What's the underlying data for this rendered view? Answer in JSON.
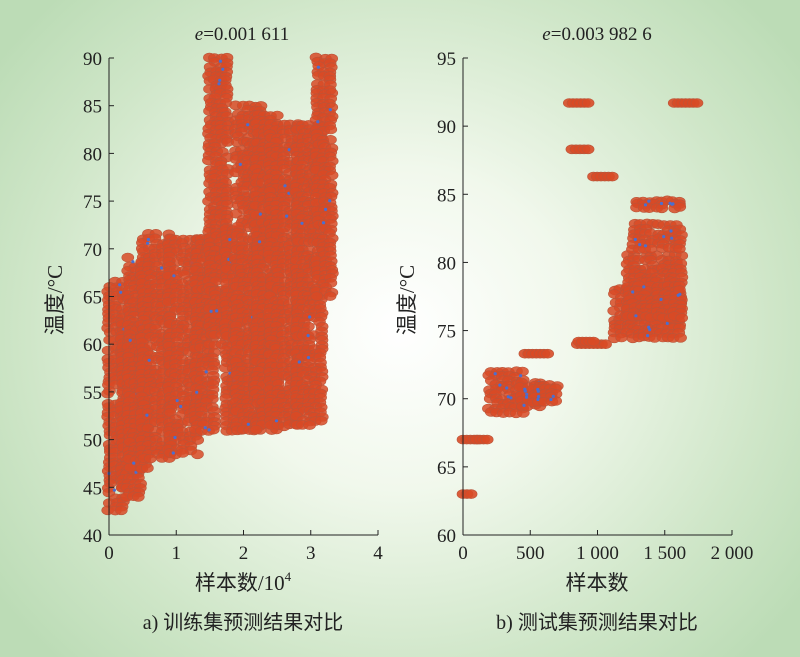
{
  "chart_data": [
    {
      "type": "scatter",
      "title_var": "e",
      "title_value": "=0.001 611",
      "xlabel": "样本数/10",
      "xlabel_sup": "4",
      "ylabel": "温度/°C",
      "caption": "a) 训练集预测结果对比",
      "xlim": [
        0,
        4
      ],
      "ylim": [
        40,
        90
      ],
      "xticks": [
        0,
        1,
        2,
        3,
        4
      ],
      "xtick_labels": [
        "0",
        "1",
        "2",
        "3",
        "4"
      ],
      "yticks": [
        40,
        45,
        50,
        55,
        60,
        65,
        70,
        75,
        80,
        85,
        90
      ],
      "ytick_labels": [
        "40",
        "45",
        "50",
        "55",
        "60",
        "65",
        "70",
        "75",
        "80",
        "85",
        "90"
      ],
      "marker_color": "#d84a26",
      "accent_color": "#4a6fd0",
      "clusters": [
        {
          "x": [
            0.0,
            0.2
          ],
          "y": [
            42.5,
            66.5
          ]
        },
        {
          "x": [
            0.2,
            0.45
          ],
          "y": [
            44,
            62
          ]
        },
        {
          "x": [
            0.3,
            0.55
          ],
          "y": [
            47,
            69
          ]
        },
        {
          "x": [
            0.5,
            0.9
          ],
          "y": [
            48,
            71.5
          ]
        },
        {
          "x": [
            0.9,
            1.3
          ],
          "y": [
            48.5,
            71
          ]
        },
        {
          "x": [
            1.3,
            1.55
          ],
          "y": [
            51,
            71
          ]
        },
        {
          "x": [
            1.5,
            1.75
          ],
          "y": [
            60,
            90
          ]
        },
        {
          "x": [
            1.75,
            1.95
          ],
          "y": [
            51,
            72
          ]
        },
        {
          "x": [
            1.9,
            2.25
          ],
          "y": [
            51,
            85
          ]
        },
        {
          "x": [
            2.2,
            2.5
          ],
          "y": [
            51,
            84
          ]
        },
        {
          "x": [
            2.4,
            2.8
          ],
          "y": [
            51.5,
            83
          ]
        },
        {
          "x": [
            2.8,
            3.15
          ],
          "y": [
            51.5,
            83
          ]
        },
        {
          "x": [
            3.1,
            3.3
          ],
          "y": [
            65,
            90
          ]
        }
      ]
    },
    {
      "type": "scatter",
      "title_var": "e",
      "title_value": "=0.003 982 6",
      "xlabel": "样本数",
      "ylabel": "温度/°C",
      "caption": "b) 测试集预测结果对比",
      "xlim": [
        0,
        2000
      ],
      "ylim": [
        60,
        95
      ],
      "xticks": [
        0,
        500,
        1000,
        1500,
        2000
      ],
      "xtick_labels": [
        "0",
        "500",
        "1 000",
        "1 500",
        "2 000"
      ],
      "yticks": [
        60,
        65,
        70,
        75,
        80,
        85,
        90,
        95
      ],
      "ytick_labels": [
        "60",
        "65",
        "70",
        "75",
        "80",
        "85",
        "90",
        "95"
      ],
      "marker_color": "#d84a26",
      "accent_color": "#4a6fd0",
      "segments": [
        {
          "x": [
            0,
            60
          ],
          "y": 63
        },
        {
          "x": [
            0,
            110
          ],
          "y": 67
        },
        {
          "x": [
            100,
            180
          ],
          "y": 67
        },
        {
          "x": [
            460,
            630
          ],
          "y": 73.3
        },
        {
          "x": [
            850,
            1060
          ],
          "y": 74
        },
        {
          "x": [
            860,
            970
          ],
          "y": 74.2
        },
        {
          "x": [
            810,
            930
          ],
          "y": 88.3
        },
        {
          "x": [
            970,
            1110
          ],
          "y": 86.3
        },
        {
          "x": [
            790,
            930
          ],
          "y": 91.7
        },
        {
          "x": [
            1570,
            1740
          ],
          "y": 91.7
        }
      ],
      "clusters": [
        {
          "x": [
            200,
            440
          ],
          "y": [
            69,
            72
          ]
        },
        {
          "x": [
            430,
            580
          ],
          "y": [
            69.5,
            71.2
          ]
        },
        {
          "x": [
            530,
            690
          ],
          "y": [
            69.8,
            71
          ]
        },
        {
          "x": [
            1130,
            1610
          ],
          "y": [
            74.5,
            78
          ]
        },
        {
          "x": [
            1230,
            1620
          ],
          "y": [
            76,
            80.5
          ]
        },
        {
          "x": [
            1270,
            1620
          ],
          "y": [
            81,
            82.8
          ]
        },
        {
          "x": [
            1300,
            1610
          ],
          "y": [
            84,
            84.5
          ]
        }
      ]
    }
  ]
}
